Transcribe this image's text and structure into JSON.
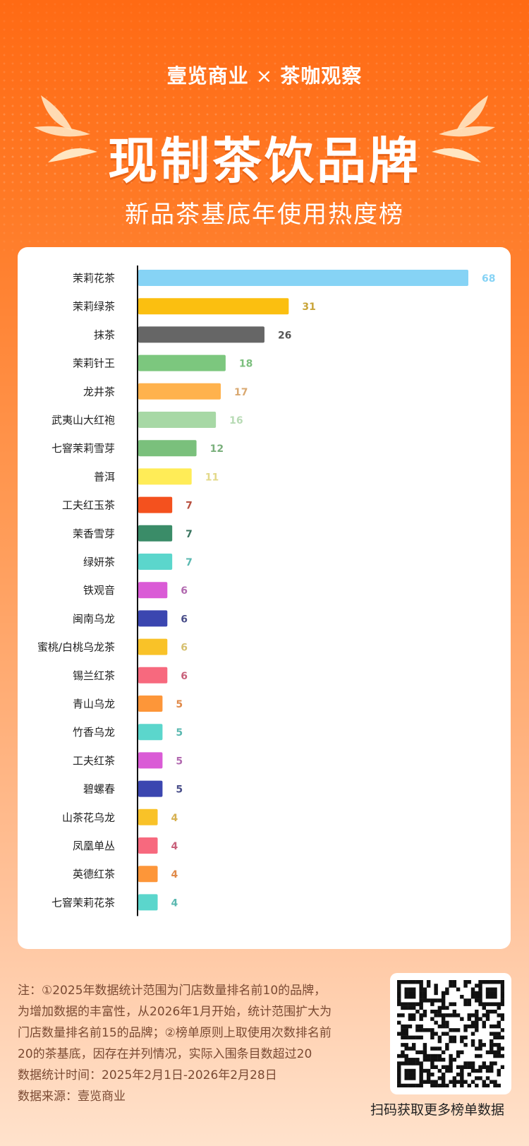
{
  "header": {
    "brand_left": "壹览商业",
    "cross": "×",
    "brand_right": "茶咖观察",
    "title": "现制茶饮品牌",
    "subtitle": "新品茶基底年使用热度榜"
  },
  "chart_data": {
    "type": "bar",
    "orientation": "horizontal",
    "categories": [
      "茉莉花茶",
      "茉莉绿茶",
      "抹茶",
      "茉莉针王",
      "龙井茶",
      "武夷山大红袍",
      "七窨茉莉雪芽",
      "普洱",
      "工夫红玉茶",
      "茉香雪芽",
      "绿妍茶",
      "铁观音",
      "闽南乌龙",
      "蜜桃/白桃乌龙茶",
      "锡兰红茶",
      "青山乌龙",
      "竹香乌龙",
      "工夫红茶",
      "碧螺春",
      "山茶花乌龙",
      "凤凰单丛",
      "英德红茶",
      "七窨茉莉花茶"
    ],
    "values": [
      68,
      31,
      26,
      18,
      17,
      16,
      12,
      11,
      7,
      7,
      7,
      6,
      6,
      6,
      6,
      5,
      5,
      5,
      5,
      4,
      4,
      4,
      4
    ],
    "value_labels": [
      "68",
      "31",
      "26",
      "18",
      "17",
      "16",
      "12",
      "11",
      "7",
      "7",
      "7",
      "6",
      "6",
      "6",
      "6",
      "5",
      "5",
      "5",
      "5",
      "4",
      "4",
      "4",
      "4"
    ],
    "colors": [
      "#86d3f5",
      "#fbbf10",
      "#666666",
      "#7cc77e",
      "#ffb24d",
      "#a7d8a5",
      "#7ac07c",
      "#ffec57",
      "#f4511e",
      "#3a8c68",
      "#5bd6cc",
      "#da5bd6",
      "#3b46b0",
      "#f9c228",
      "#f7697e",
      "#fd9639",
      "#5bd6cc",
      "#da5bd6",
      "#3b46b0",
      "#f9c228",
      "#f7697e",
      "#fd9639",
      "#5bd6cc"
    ],
    "label_colors": [
      "#86d3f5",
      "#c9a53a",
      "#555555",
      "#7cbf7e",
      "#d9a870",
      "#b8dbb5",
      "#7ab07c",
      "#e3d98a",
      "#b85040",
      "#3a7560",
      "#5ab8b0",
      "#b26ab0",
      "#4a4f8a",
      "#d6c070",
      "#c8607a",
      "#e08a4a",
      "#5ab8b0",
      "#b26ab0",
      "#4a4f8a",
      "#d6b050",
      "#c8607a",
      "#e08a4a",
      "#5ab8b0"
    ],
    "xlim": [
      0,
      70
    ],
    "grid": false
  },
  "footer": {
    "notes": [
      "注：①2025年数据统计范围为门店数量排名前10的品牌，",
      "为增加数据的丰富性，从2026年1月开始，统计范围扩大为",
      "门店数量排名前15的品牌；②榜单原则上取使用次数排名前",
      "20的茶基底，因存在并列情况，实际入围条目数超过20",
      "数据统计时间：2025年2月1日-2026年2月28日",
      "数据来源：壹览商业"
    ],
    "qr_caption": "扫码获取更多榜单数据"
  }
}
